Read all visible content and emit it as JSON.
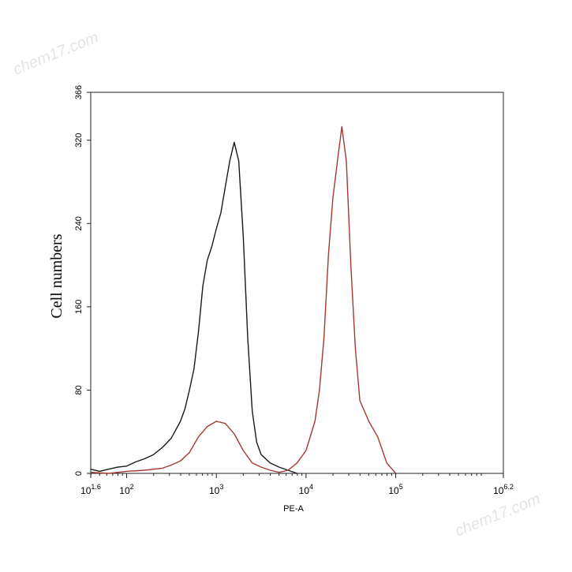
{
  "watermarks": [
    "chem17.com",
    "chem17.com"
  ],
  "chart_data": {
    "type": "line",
    "title": "",
    "xlabel": "PE-A",
    "ylabel": "Cell numbers",
    "x_scale": "log10",
    "xlim": [
      1.6,
      6.2
    ],
    "ylim": [
      0,
      366
    ],
    "yticks": [
      0,
      80,
      160,
      240,
      320,
      366
    ],
    "xticks": [
      {
        "base": "10",
        "exp": "1.6",
        "value": 1.6
      },
      {
        "base": "10",
        "exp": "2",
        "value": 2
      },
      {
        "base": "10",
        "exp": "3",
        "value": 3
      },
      {
        "base": "10",
        "exp": "4",
        "value": 4
      },
      {
        "base": "10",
        "exp": "5",
        "value": 5
      },
      {
        "base": "10",
        "exp": "6.2",
        "value": 6.2
      }
    ],
    "grid": false,
    "legend": "none",
    "series": [
      {
        "color": "#1a1a1a",
        "x": [
          1.6,
          1.7,
          1.8,
          1.9,
          2.0,
          2.1,
          2.2,
          2.3,
          2.4,
          2.5,
          2.6,
          2.65,
          2.7,
          2.75,
          2.8,
          2.85,
          2.9,
          2.95,
          3.0,
          3.05,
          3.1,
          3.15,
          3.2,
          3.25,
          3.3,
          3.35,
          3.4,
          3.45,
          3.5,
          3.55,
          3.6,
          3.7,
          3.8,
          3.9
        ],
        "y": [
          4,
          2,
          4,
          6,
          7,
          11,
          14,
          18,
          25,
          34,
          50,
          62,
          80,
          100,
          135,
          180,
          205,
          218,
          235,
          250,
          275,
          300,
          318,
          300,
          228,
          130,
          60,
          30,
          18,
          14,
          10,
          6,
          3,
          0
        ]
      },
      {
        "color": "#a33a32",
        "x": [
          1.6,
          1.8,
          2.0,
          2.2,
          2.4,
          2.5,
          2.6,
          2.7,
          2.8,
          2.9,
          3.0,
          3.1,
          3.2,
          3.3,
          3.4,
          3.5,
          3.6,
          3.7,
          3.8,
          3.9,
          4.0,
          4.1,
          4.15,
          4.2,
          4.25,
          4.3,
          4.35,
          4.4,
          4.45,
          4.5,
          4.55,
          4.6,
          4.7,
          4.8,
          4.9,
          5.0
        ],
        "y": [
          1,
          0,
          2,
          3,
          5,
          8,
          12,
          20,
          35,
          45,
          50,
          48,
          38,
          22,
          10,
          6,
          3,
          1,
          3,
          10,
          22,
          50,
          80,
          130,
          210,
          265,
          300,
          333,
          300,
          200,
          120,
          70,
          50,
          35,
          10,
          0
        ]
      }
    ]
  }
}
